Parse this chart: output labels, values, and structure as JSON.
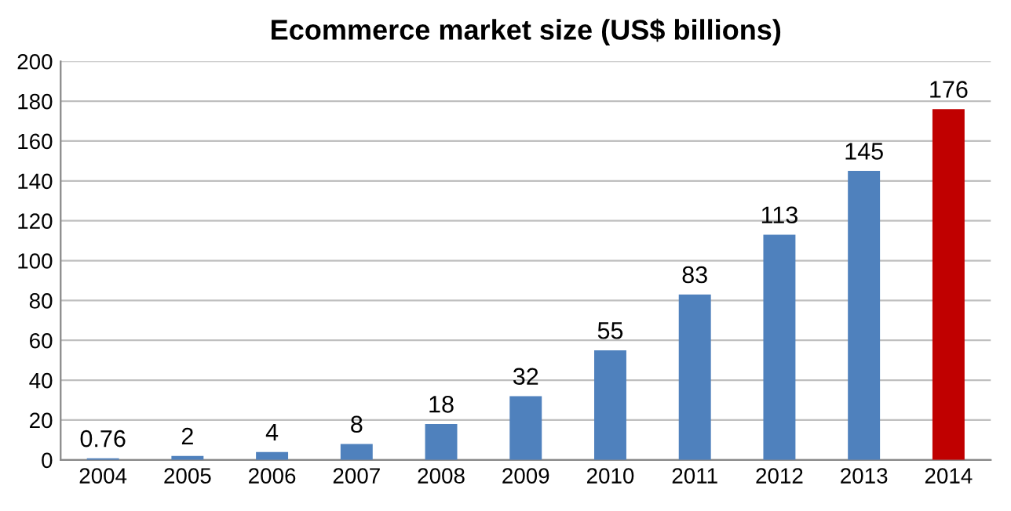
{
  "chart_data": {
    "type": "bar",
    "title": "Ecommerce market size (US$ billions)",
    "categories": [
      "2004",
      "2005",
      "2006",
      "2007",
      "2008",
      "2009",
      "2010",
      "2011",
      "2012",
      "2013",
      "2014"
    ],
    "values": [
      0.76,
      2,
      4,
      8,
      18,
      32,
      55,
      83,
      113,
      145,
      176
    ],
    "colors": [
      "#4f81bd",
      "#4f81bd",
      "#4f81bd",
      "#4f81bd",
      "#4f81bd",
      "#4f81bd",
      "#4f81bd",
      "#4f81bd",
      "#4f81bd",
      "#4f81bd",
      "#c00000"
    ],
    "ylim": [
      0,
      200
    ],
    "yticks": [
      0,
      20,
      40,
      60,
      80,
      100,
      120,
      140,
      160,
      180,
      200
    ],
    "grid": "y",
    "data_labels": true
  }
}
